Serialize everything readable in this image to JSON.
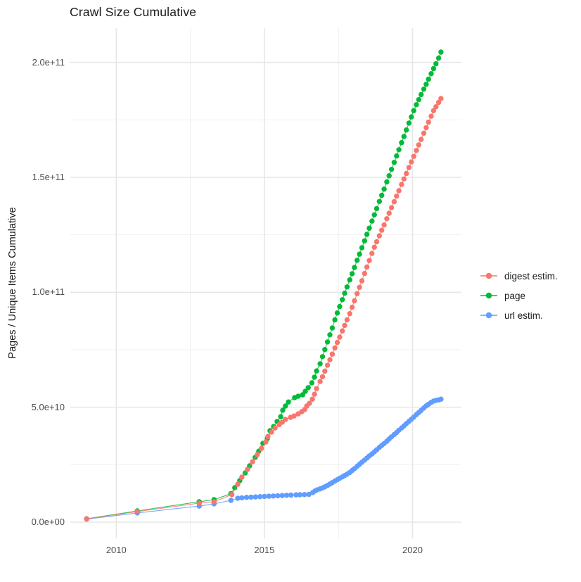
{
  "page": {
    "background_color": "#ffffff"
  },
  "chart_data": {
    "type": "scatter",
    "title": "Crawl Size Cumulative",
    "xlabel": "",
    "ylabel": "Pages / Unique Items Cumulative",
    "unit": "values are cumulative counts in billions (1e9)",
    "grid": {
      "on": true,
      "major_color": "#e6e6e6",
      "minor_color": "#f0f0f0"
    },
    "legend_position": "right",
    "x_domain": [
      2008.45,
      2021.65
    ],
    "y_domain_e9": [
      -7.04,
      214.9
    ],
    "x_ticks": [
      {
        "value": 2010,
        "label": "2010"
      },
      {
        "value": 2015,
        "label": "2015"
      },
      {
        "value": 2020,
        "label": "2020"
      }
    ],
    "x_minor_ticks": [
      2012.5,
      2017.5
    ],
    "y_ticks": [
      {
        "value_e9": 0,
        "label": "0.0e+00"
      },
      {
        "value_e9": 50,
        "label": "5.0e+10"
      },
      {
        "value_e9": 100,
        "label": "1.0e+11"
      },
      {
        "value_e9": 150,
        "label": "1.5e+11"
      },
      {
        "value_e9": 200,
        "label": "2.0e+11"
      }
    ],
    "y_minor_ticks_e9": [
      25,
      75,
      125,
      175
    ],
    "series": [
      {
        "name": "digest estim.",
        "color": "#F8766D",
        "points": [
          [
            2009.0,
            1.45
          ],
          [
            2010.71,
            4.6
          ],
          [
            2012.8,
            8.3
          ],
          [
            2013.3,
            8.9
          ],
          [
            2013.9,
            12.0
          ],
          [
            2014.1,
            16.5
          ],
          [
            2014.24,
            19.6
          ],
          [
            2014.43,
            23.0
          ],
          [
            2014.6,
            26.3
          ],
          [
            2014.76,
            29.4
          ],
          [
            2014.9,
            32.1
          ],
          [
            2015.05,
            34.9
          ],
          [
            2015.12,
            37.3
          ],
          [
            2015.24,
            39.2
          ],
          [
            2015.36,
            41.0
          ],
          [
            2015.5,
            42.5
          ],
          [
            2015.6,
            43.5
          ],
          [
            2015.71,
            44.7
          ],
          [
            2015.88,
            45.6
          ],
          [
            2016.0,
            46.2
          ],
          [
            2016.14,
            47.1
          ],
          [
            2016.26,
            48.1
          ],
          [
            2016.36,
            49.0
          ],
          [
            2016.43,
            50.5
          ],
          [
            2016.52,
            51.7
          ],
          [
            2016.62,
            53.5
          ],
          [
            2016.69,
            55.7
          ],
          [
            2016.76,
            58.1
          ],
          [
            2016.88,
            61.2
          ],
          [
            2016.96,
            63.3
          ],
          [
            2017.04,
            65.7
          ],
          [
            2017.13,
            68.3
          ],
          [
            2017.21,
            70.7
          ],
          [
            2017.29,
            73.1
          ],
          [
            2017.38,
            75.8
          ],
          [
            2017.46,
            78.2
          ],
          [
            2017.54,
            80.5
          ],
          [
            2017.63,
            83.2
          ],
          [
            2017.71,
            85.6
          ],
          [
            2017.79,
            88.0
          ],
          [
            2017.88,
            90.7
          ],
          [
            2017.96,
            93.5
          ],
          [
            2018.04,
            96.3
          ],
          [
            2018.13,
            99.4
          ],
          [
            2018.21,
            102.2
          ],
          [
            2018.29,
            105.0
          ],
          [
            2018.38,
            108.2
          ],
          [
            2018.46,
            111.0
          ],
          [
            2018.54,
            113.8
          ],
          [
            2018.63,
            116.9
          ],
          [
            2018.71,
            119.6
          ],
          [
            2018.79,
            122.0
          ],
          [
            2018.88,
            124.6
          ],
          [
            2018.96,
            127.0
          ],
          [
            2019.04,
            129.3
          ],
          [
            2019.13,
            132.0
          ],
          [
            2019.21,
            134.4
          ],
          [
            2019.29,
            136.8
          ],
          [
            2019.38,
            139.4
          ],
          [
            2019.46,
            141.8
          ],
          [
            2019.54,
            144.2
          ],
          [
            2019.63,
            146.9
          ],
          [
            2019.71,
            149.3
          ],
          [
            2019.79,
            151.7
          ],
          [
            2019.88,
            154.3
          ],
          [
            2019.96,
            156.7
          ],
          [
            2020.04,
            159.1
          ],
          [
            2020.13,
            161.7
          ],
          [
            2020.21,
            164.1
          ],
          [
            2020.29,
            166.5
          ],
          [
            2020.38,
            169.2
          ],
          [
            2020.46,
            171.6
          ],
          [
            2020.54,
            174.0
          ],
          [
            2020.63,
            176.6
          ],
          [
            2020.71,
            179.0
          ],
          [
            2020.79,
            180.7
          ],
          [
            2020.88,
            182.6
          ],
          [
            2020.96,
            184.3
          ]
        ]
      },
      {
        "name": "page",
        "color": "#00BA38",
        "points": [
          [
            2009.0,
            1.5
          ],
          [
            2010.71,
            4.9
          ],
          [
            2012.8,
            8.9
          ],
          [
            2013.3,
            9.8
          ],
          [
            2013.87,
            12.4
          ],
          [
            2014.0,
            15.0
          ],
          [
            2014.17,
            18.1
          ],
          [
            2014.35,
            21.4
          ],
          [
            2014.5,
            24.5
          ],
          [
            2014.69,
            28.2
          ],
          [
            2014.81,
            30.9
          ],
          [
            2014.95,
            34.3
          ],
          [
            2015.1,
            36.4
          ],
          [
            2015.19,
            39.8
          ],
          [
            2015.31,
            41.6
          ],
          [
            2015.43,
            43.8
          ],
          [
            2015.55,
            45.9
          ],
          [
            2015.62,
            48.7
          ],
          [
            2015.71,
            50.5
          ],
          [
            2015.81,
            52.3
          ],
          [
            2016.02,
            54.2
          ],
          [
            2016.14,
            54.8
          ],
          [
            2016.29,
            55.4
          ],
          [
            2016.38,
            56.9
          ],
          [
            2016.48,
            58.5
          ],
          [
            2016.6,
            60.6
          ],
          [
            2016.69,
            63.1
          ],
          [
            2016.76,
            65.8
          ],
          [
            2016.88,
            68.9
          ],
          [
            2016.96,
            72.0
          ],
          [
            2017.04,
            75.1
          ],
          [
            2017.13,
            78.4
          ],
          [
            2017.21,
            81.5
          ],
          [
            2017.29,
            84.5
          ],
          [
            2017.38,
            88.0
          ],
          [
            2017.46,
            91.0
          ],
          [
            2017.54,
            93.8
          ],
          [
            2017.63,
            96.8
          ],
          [
            2017.71,
            99.6
          ],
          [
            2017.79,
            102.3
          ],
          [
            2017.88,
            105.4
          ],
          [
            2017.96,
            108.1
          ],
          [
            2018.04,
            110.8
          ],
          [
            2018.13,
            113.9
          ],
          [
            2018.21,
            116.6
          ],
          [
            2018.29,
            119.4
          ],
          [
            2018.38,
            122.4
          ],
          [
            2018.46,
            125.2
          ],
          [
            2018.54,
            127.9
          ],
          [
            2018.63,
            131.0
          ],
          [
            2018.71,
            133.7
          ],
          [
            2018.79,
            136.4
          ],
          [
            2018.88,
            139.5
          ],
          [
            2018.96,
            142.2
          ],
          [
            2019.04,
            144.9
          ],
          [
            2019.13,
            148.0
          ],
          [
            2019.21,
            150.7
          ],
          [
            2019.29,
            153.5
          ],
          [
            2019.38,
            156.5
          ],
          [
            2019.46,
            159.3
          ],
          [
            2019.54,
            162.0
          ],
          [
            2019.63,
            165.1
          ],
          [
            2019.71,
            167.8
          ],
          [
            2019.79,
            170.6
          ],
          [
            2019.88,
            173.6
          ],
          [
            2019.96,
            176.3
          ],
          [
            2020.04,
            179.0
          ],
          [
            2020.13,
            181.6
          ],
          [
            2020.21,
            183.8
          ],
          [
            2020.29,
            186.0
          ],
          [
            2020.38,
            188.4
          ],
          [
            2020.46,
            190.5
          ],
          [
            2020.54,
            192.7
          ],
          [
            2020.63,
            195.1
          ],
          [
            2020.71,
            197.3
          ],
          [
            2020.79,
            199.4
          ],
          [
            2020.88,
            201.9
          ],
          [
            2020.96,
            204.5
          ]
        ]
      },
      {
        "name": "url estim.",
        "color": "#619CFF",
        "points": [
          [
            2009.0,
            1.35
          ],
          [
            2010.71,
            4.0
          ],
          [
            2012.8,
            7.0
          ],
          [
            2013.3,
            8.0
          ],
          [
            2013.87,
            9.5
          ],
          [
            2014.1,
            10.4
          ],
          [
            2014.24,
            10.6
          ],
          [
            2014.4,
            10.8
          ],
          [
            2014.55,
            10.9
          ],
          [
            2014.7,
            11.0
          ],
          [
            2014.85,
            11.1
          ],
          [
            2015.0,
            11.2
          ],
          [
            2015.15,
            11.3
          ],
          [
            2015.3,
            11.4
          ],
          [
            2015.45,
            11.5
          ],
          [
            2015.6,
            11.6
          ],
          [
            2015.75,
            11.7
          ],
          [
            2015.9,
            11.8
          ],
          [
            2016.07,
            11.9
          ],
          [
            2016.2,
            11.95
          ],
          [
            2016.35,
            12.0
          ],
          [
            2016.5,
            12.1
          ],
          [
            2016.63,
            12.9
          ],
          [
            2016.71,
            13.6
          ],
          [
            2016.79,
            14.1
          ],
          [
            2016.88,
            14.5
          ],
          [
            2016.96,
            14.9
          ],
          [
            2017.04,
            15.4
          ],
          [
            2017.13,
            16.0
          ],
          [
            2017.21,
            16.6
          ],
          [
            2017.29,
            17.2
          ],
          [
            2017.38,
            17.9
          ],
          [
            2017.46,
            18.5
          ],
          [
            2017.54,
            19.1
          ],
          [
            2017.63,
            19.7
          ],
          [
            2017.71,
            20.3
          ],
          [
            2017.79,
            20.9
          ],
          [
            2017.88,
            21.6
          ],
          [
            2017.96,
            22.5
          ],
          [
            2018.04,
            23.3
          ],
          [
            2018.13,
            24.3
          ],
          [
            2018.21,
            25.2
          ],
          [
            2018.29,
            26.1
          ],
          [
            2018.38,
            27.0
          ],
          [
            2018.46,
            27.9
          ],
          [
            2018.54,
            28.8
          ],
          [
            2018.63,
            29.7
          ],
          [
            2018.71,
            30.6
          ],
          [
            2018.79,
            31.5
          ],
          [
            2018.88,
            32.5
          ],
          [
            2018.96,
            33.4
          ],
          [
            2019.04,
            34.2
          ],
          [
            2019.13,
            35.2
          ],
          [
            2019.21,
            36.2
          ],
          [
            2019.29,
            37.1
          ],
          [
            2019.38,
            38.1
          ],
          [
            2019.46,
            39.0
          ],
          [
            2019.54,
            40.0
          ],
          [
            2019.63,
            41.0
          ],
          [
            2019.71,
            41.9
          ],
          [
            2019.79,
            42.9
          ],
          [
            2019.88,
            43.9
          ],
          [
            2019.96,
            44.8
          ],
          [
            2020.04,
            45.7
          ],
          [
            2020.13,
            46.8
          ],
          [
            2020.21,
            47.7
          ],
          [
            2020.29,
            48.6
          ],
          [
            2020.38,
            49.7
          ],
          [
            2020.46,
            50.6
          ],
          [
            2020.54,
            51.3
          ],
          [
            2020.63,
            52.1
          ],
          [
            2020.71,
            52.7
          ],
          [
            2020.79,
            53.0
          ],
          [
            2020.88,
            53.2
          ],
          [
            2020.96,
            53.5
          ]
        ]
      }
    ]
  }
}
